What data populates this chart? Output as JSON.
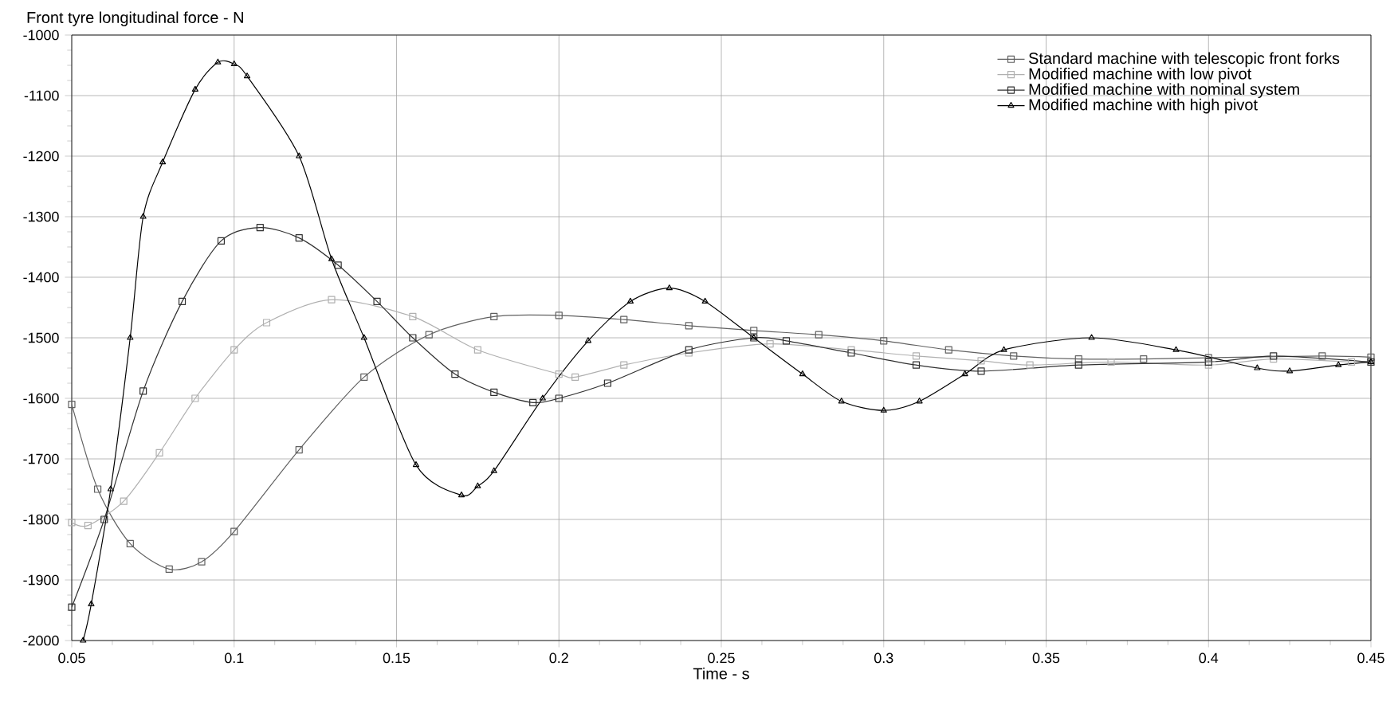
{
  "chart_data": {
    "type": "line",
    "ylabel": "Front tyre longitudinal force - N",
    "xlabel": "Time - s",
    "xlim": [
      0.05,
      0.45
    ],
    "xticks": [
      0.05,
      0.1,
      0.15,
      0.2,
      0.25,
      0.3,
      0.35,
      0.4,
      0.45
    ],
    "ylim": [
      -2000,
      -1000
    ],
    "yticks": [
      -2000,
      -1900,
      -1800,
      -1700,
      -1600,
      -1500,
      -1400,
      -1300,
      -1200,
      -1100,
      -1000
    ],
    "grid": true,
    "legend": "top right",
    "series": [
      {
        "name": "Standard machine with telescopic front forks",
        "color": "#606060",
        "marker": "square",
        "x": [
          0.05,
          0.058,
          0.068,
          0.08,
          0.09,
          0.1,
          0.12,
          0.14,
          0.16,
          0.18,
          0.2,
          0.22,
          0.24,
          0.26,
          0.28,
          0.3,
          0.32,
          0.34,
          0.36,
          0.38,
          0.4,
          0.435,
          0.45
        ],
        "values": [
          -1610,
          -1750,
          -1840,
          -1882,
          -1870,
          -1820,
          -1685,
          -1565,
          -1495,
          -1465,
          -1463,
          -1470,
          -1480,
          -1488,
          -1495,
          -1505,
          -1520,
          -1530,
          -1535,
          -1535,
          -1533,
          -1530,
          -1532
        ]
      },
      {
        "name": "Modified machine with low pivot",
        "color": "#b0b0b0",
        "marker": "square",
        "x": [
          0.05,
          0.055,
          0.066,
          0.077,
          0.088,
          0.1,
          0.11,
          0.13,
          0.155,
          0.175,
          0.2,
          0.205,
          0.22,
          0.24,
          0.265,
          0.29,
          0.31,
          0.33,
          0.345,
          0.37,
          0.4,
          0.42,
          0.444
        ],
        "values": [
          -1805,
          -1810,
          -1770,
          -1690,
          -1600,
          -1520,
          -1475,
          -1437,
          -1465,
          -1520,
          -1560,
          -1565,
          -1545,
          -1525,
          -1510,
          -1520,
          -1530,
          -1538,
          -1545,
          -1540,
          -1545,
          -1535,
          -1540
        ]
      },
      {
        "name": "Modified machine with nominal system",
        "color": "#303030",
        "marker": "square",
        "x": [
          0.05,
          0.06,
          0.072,
          0.084,
          0.096,
          0.108,
          0.12,
          0.132,
          0.144,
          0.155,
          0.168,
          0.18,
          0.192,
          0.2,
          0.215,
          0.24,
          0.26,
          0.27,
          0.29,
          0.31,
          0.33,
          0.36,
          0.4,
          0.42,
          0.45
        ],
        "values": [
          -1945,
          -1800,
          -1588,
          -1440,
          -1340,
          -1318,
          -1335,
          -1380,
          -1440,
          -1500,
          -1560,
          -1590,
          -1607,
          -1600,
          -1575,
          -1520,
          -1500,
          -1505,
          -1525,
          -1545,
          -1555,
          -1545,
          -1540,
          -1530,
          -1540
        ]
      },
      {
        "name": "Modified machine with high pivot",
        "color": "#000000",
        "marker": "triangle",
        "x": [
          0.0535,
          0.056,
          0.062,
          0.068,
          0.072,
          0.078,
          0.088,
          0.095,
          0.1,
          0.104,
          0.12,
          0.13,
          0.14,
          0.156,
          0.17,
          0.175,
          0.18,
          0.195,
          0.209,
          0.222,
          0.234,
          0.245,
          0.26,
          0.275,
          0.287,
          0.3,
          0.311,
          0.325,
          0.337,
          0.364,
          0.39,
          0.415,
          0.425,
          0.44,
          0.45
        ],
        "values": [
          -2000,
          -1940,
          -1750,
          -1500,
          -1300,
          -1210,
          -1090,
          -1045,
          -1048,
          -1068,
          -1200,
          -1370,
          -1500,
          -1710,
          -1760,
          -1745,
          -1720,
          -1600,
          -1505,
          -1440,
          -1418,
          -1440,
          -1500,
          -1560,
          -1605,
          -1620,
          -1605,
          -1560,
          -1520,
          -1500,
          -1520,
          -1550,
          -1555,
          -1545,
          -1540
        ]
      }
    ]
  }
}
